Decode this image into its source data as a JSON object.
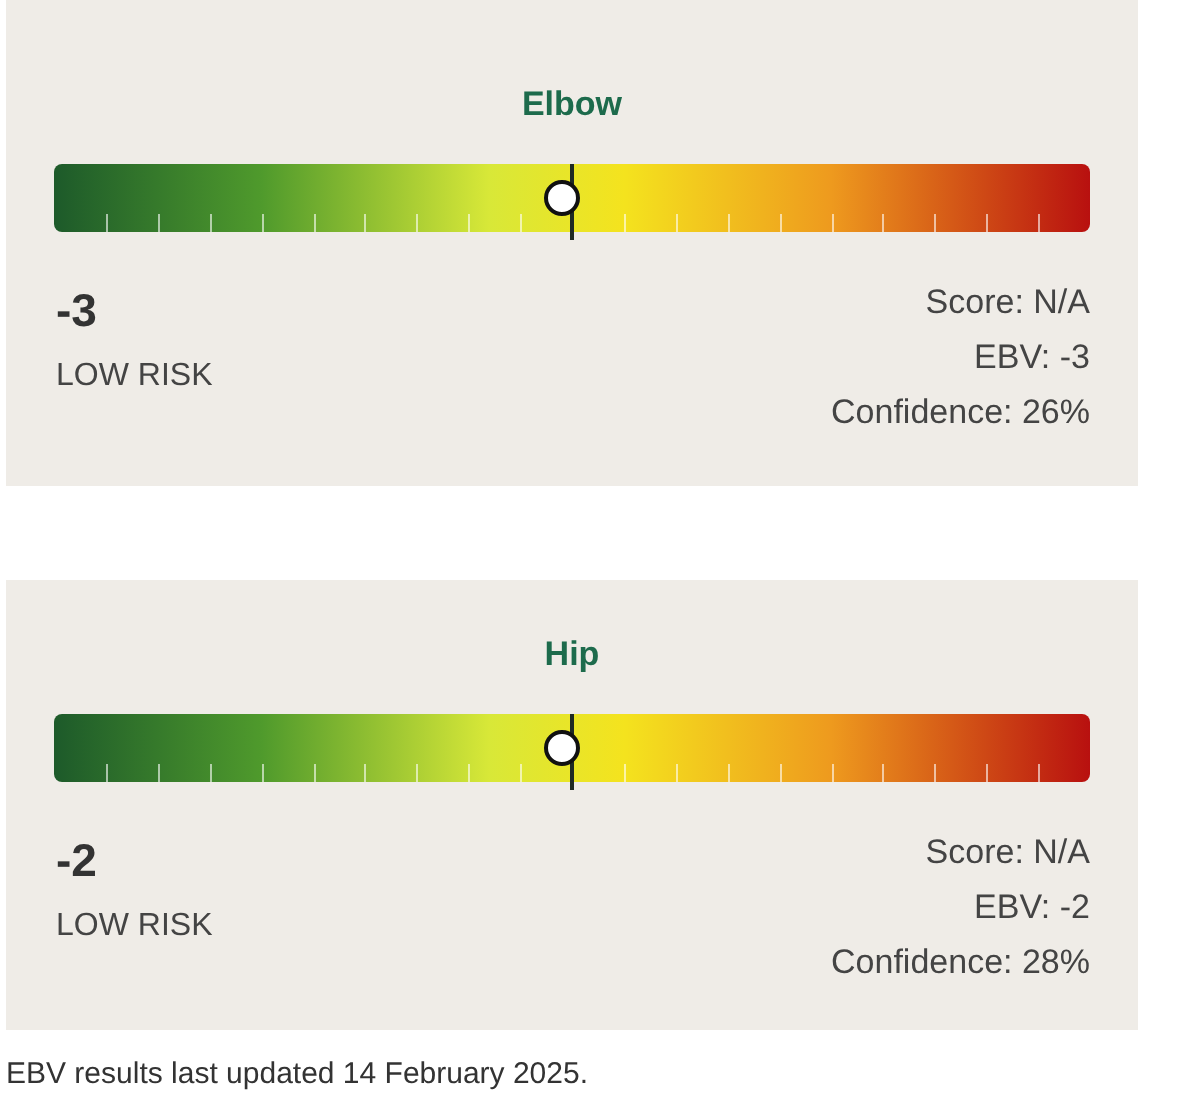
{
  "chart_data": [
    {
      "type": "other",
      "title": "Elbow",
      "values": [
        -3
      ],
      "data_labels": true,
      "annotations": [
        "LOW RISK",
        "Score: N/A",
        "EBV: -3",
        "Confidence: 26%"
      ]
    },
    {
      "type": "other",
      "title": "Hip",
      "values": [
        -2
      ],
      "data_labels": true,
      "annotations": [
        "LOW RISK",
        "Score: N/A",
        "EBV: -2",
        "Confidence: 28%",
        "EBV results last updated 14 February 2025."
      ]
    }
  ]
}
